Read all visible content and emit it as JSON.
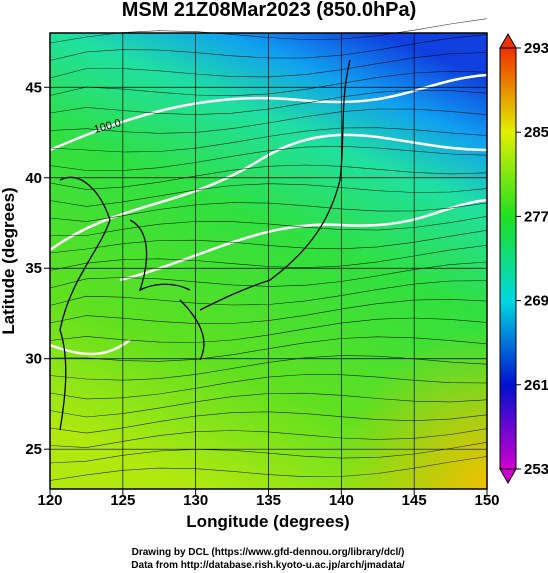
{
  "chart_data": {
    "type": "map",
    "title": "MSM 21Z08Mar2023 (850.0hPa)",
    "x_label": "Longitude (degrees)",
    "y_label": "Latitude  (degrees)",
    "xlim": [
      120,
      150
    ],
    "ylim": [
      22.8,
      48
    ],
    "xticks": [
      120,
      125,
      130,
      135,
      140,
      145,
      150
    ],
    "yticks": [
      25,
      30,
      35,
      40,
      45
    ],
    "grid": true,
    "contour_label": "100.0",
    "colorbar": {
      "lim": [
        253,
        293
      ],
      "ticks": [
        253,
        261,
        269,
        277,
        285,
        293
      ],
      "colors": [
        "#d000d0",
        "#0010d0",
        "#00d8e0",
        "#20e020",
        "#e0f000",
        "#f03000"
      ]
    },
    "credits": [
      "Drawing by DCL (https://www.gfd-dennou.org/library/dcl/)",
      "Data from http://database.rish.kyoto-u.ac.jp/arch/jmadata/"
    ]
  }
}
